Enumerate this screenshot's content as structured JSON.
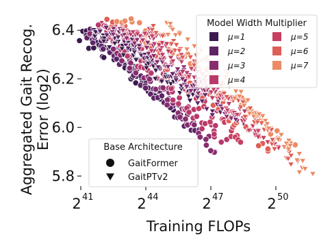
{
  "chart_data": {
    "type": "scatter",
    "xlabel": "Training FLOPs",
    "ylabel": [
      "Aggregated Gait Recog.",
      "Error (log2)"
    ],
    "x_scale": "log2",
    "x_range_exp": [
      41,
      51.8
    ],
    "y_range": [
      5.77,
      6.44
    ],
    "x_ticks": [
      {
        "base": "2",
        "exp": "41",
        "value_exp": 41
      },
      {
        "base": "2",
        "exp": "44",
        "value_exp": 44
      },
      {
        "base": "2",
        "exp": "47",
        "value_exp": 47
      },
      {
        "base": "2",
        "exp": "50",
        "value_exp": 50
      }
    ],
    "y_ticks": [
      {
        "label": "6.4",
        "value": 6.4
      },
      {
        "label": "6.2",
        "value": 6.2
      },
      {
        "label": "6.0",
        "value": 6.0
      },
      {
        "label": "5.8",
        "value": 5.8
      }
    ],
    "grid": false,
    "width_legend": {
      "title": "Model Width Multiplier",
      "position": "top-right",
      "entries": [
        {
          "label": "μ=1",
          "color": "#3b1a4f"
        },
        {
          "label": "μ=2",
          "color": "#5e2566"
        },
        {
          "label": "μ=3",
          "color": "#872d6e"
        },
        {
          "label": "μ=4",
          "color": "#b83a6b"
        },
        {
          "label": "μ=5",
          "color": "#c63f62"
        },
        {
          "label": "μ=6",
          "color": "#df5e55"
        },
        {
          "label": "μ=7",
          "color": "#eb8b64"
        }
      ]
    },
    "arch_legend": {
      "title": "Base Architecture",
      "position": "lower-left",
      "entries": [
        {
          "label": "GaitFormer",
          "marker": "circle"
        },
        {
          "label": "GaitPTv2",
          "marker": "triangle-down"
        }
      ]
    },
    "series": [
      {
        "mu": 1,
        "architecture": "GaitFormer",
        "color": "#3b1a4f",
        "x_exp": [
          41.0,
          45.4
        ],
        "y": [
          6.38,
          6.07
        ]
      },
      {
        "mu": 2,
        "architecture": "GaitFormer",
        "color": "#5e2566",
        "x_exp": [
          41.2,
          46.3
        ],
        "y": [
          6.4,
          5.98
        ]
      },
      {
        "mu": 3,
        "architecture": "GaitFormer",
        "color": "#872d6e",
        "x_exp": [
          41.5,
          47.2
        ],
        "y": [
          6.41,
          5.9
        ]
      },
      {
        "mu": 4,
        "architecture": "GaitFormer",
        "color": "#b83a6b",
        "x_exp": [
          41.8,
          47.5
        ],
        "y": [
          6.42,
          5.94
        ]
      },
      {
        "mu": 5,
        "architecture": "GaitFormer",
        "color": "#c63f62",
        "x_exp": [
          42.1,
          48.5
        ],
        "y": [
          6.43,
          5.93
        ]
      },
      {
        "mu": 6,
        "architecture": "GaitFormer",
        "color": "#df5e55",
        "x_exp": [
          42.4,
          49.6
        ],
        "y": [
          6.44,
          5.91
        ]
      },
      {
        "mu": 7,
        "architecture": "GaitFormer",
        "color": "#eb8b64",
        "x_exp": [
          42.7,
          50.8
        ],
        "y": [
          6.45,
          5.92
        ]
      },
      {
        "mu": 1,
        "architecture": "GaitPTv2",
        "color": "#3b1a4f",
        "x_exp": [
          41.6,
          46.2
        ],
        "y": [
          6.4,
          6.12
        ]
      },
      {
        "mu": 2,
        "architecture": "GaitPTv2",
        "color": "#5e2566",
        "x_exp": [
          42.0,
          47.3
        ],
        "y": [
          6.4,
          6.07
        ]
      },
      {
        "mu": 3,
        "architecture": "GaitPTv2",
        "color": "#872d6e",
        "x_exp": [
          42.5,
          48.4
        ],
        "y": [
          6.41,
          6.02
        ]
      },
      {
        "mu": 4,
        "architecture": "GaitPTv2",
        "color": "#b83a6b",
        "x_exp": [
          43.0,
          49.3
        ],
        "y": [
          6.41,
          5.98
        ]
      },
      {
        "mu": 5,
        "architecture": "GaitPTv2",
        "color": "#c63f62",
        "x_exp": [
          43.6,
          50.0
        ],
        "y": [
          6.41,
          5.9
        ]
      },
      {
        "mu": 6,
        "architecture": "GaitPTv2",
        "color": "#df5e55",
        "x_exp": [
          44.2,
          51.0
        ],
        "y": [
          6.42,
          5.84
        ]
      },
      {
        "mu": 7,
        "architecture": "GaitPTv2",
        "color": "#eb8b64",
        "x_exp": [
          44.8,
          51.7
        ],
        "y": [
          6.42,
          5.8
        ]
      }
    ]
  }
}
